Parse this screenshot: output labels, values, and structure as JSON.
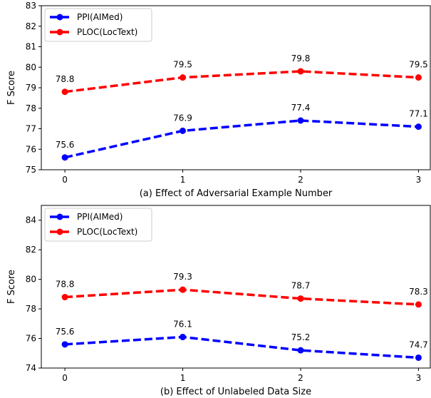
{
  "chart_data": [
    {
      "type": "line",
      "xlabel": "(a) Effect of Adversarial Example Number",
      "ylabel": "F Score",
      "x": [
        0,
        1,
        2,
        3
      ],
      "xlim": [
        -0.2,
        3.1
      ],
      "ylim": [
        75,
        83
      ],
      "yticks": [
        75,
        76,
        77,
        78,
        79,
        80,
        81,
        82,
        83
      ],
      "grid": false,
      "legend_position": "top-left",
      "series": [
        {
          "name": "PPI(AIMed)",
          "color": "#0000ff",
          "values": [
            75.6,
            76.9,
            77.4,
            77.1
          ],
          "labels": [
            "75.6",
            "76.9",
            "77.4",
            "77.1"
          ]
        },
        {
          "name": "PLOC(LocText)",
          "color": "#ff0000",
          "values": [
            78.8,
            79.5,
            79.8,
            79.5
          ],
          "labels": [
            "78.8",
            "79.5",
            "79.8",
            "79.5"
          ]
        }
      ]
    },
    {
      "type": "line",
      "xlabel": "(b) Effect of Unlabeled Data Size",
      "ylabel": "F Score",
      "x": [
        0,
        1,
        2,
        3
      ],
      "xlim": [
        -0.2,
        3.1
      ],
      "ylim": [
        74,
        85
      ],
      "yticks": [
        74,
        76,
        78,
        80,
        82,
        84
      ],
      "grid": false,
      "legend_position": "top-left",
      "series": [
        {
          "name": "PPI(AIMed)",
          "color": "#0000ff",
          "values": [
            75.6,
            76.1,
            75.2,
            74.7
          ],
          "labels": [
            "75.6",
            "76.1",
            "75.2",
            "74.7"
          ]
        },
        {
          "name": "PLOC(LocText)",
          "color": "#ff0000",
          "values": [
            78.8,
            79.3,
            78.7,
            78.3
          ],
          "labels": [
            "78.8",
            "79.3",
            "78.7",
            "78.3"
          ]
        }
      ]
    }
  ]
}
